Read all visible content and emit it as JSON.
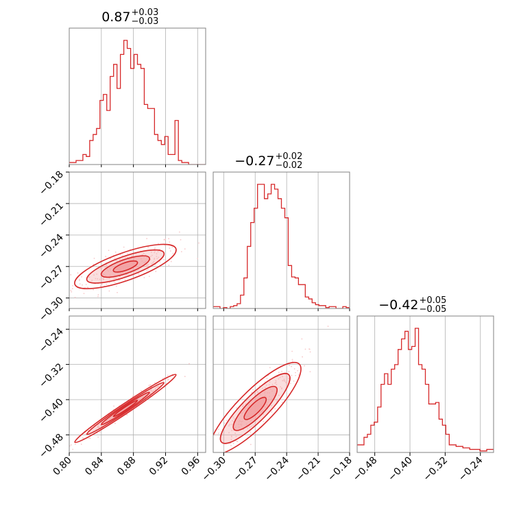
{
  "colors": {
    "series": "#d62728",
    "fill": "#f2a0a1",
    "points": "#f7c9ca",
    "grid": "#b0b0b0"
  },
  "chart_data": {
    "type": "corner",
    "grid": true,
    "parameters": [
      {
        "range": [
          0.8,
          0.97
        ],
        "ticks": [
          "0.80",
          "0.84",
          "0.88",
          "0.92",
          "0.96"
        ],
        "tick_values": [
          0.8,
          0.84,
          0.88,
          0.92,
          0.96
        ],
        "title": "0.87",
        "title_plus": "+0.03",
        "title_minus": "−0.03"
      },
      {
        "range": [
          -0.31,
          -0.18
        ],
        "ticks": [
          "−0.30",
          "−0.27",
          "−0.24",
          "−0.21",
          "−0.18"
        ],
        "tick_values": [
          -0.3,
          -0.27,
          -0.24,
          -0.21,
          -0.18
        ],
        "title": "−0.27",
        "title_plus": "+0.02",
        "title_minus": "−0.02"
      },
      {
        "range": [
          -0.52,
          -0.21
        ],
        "ticks": [
          "−0.48",
          "−0.40",
          "−0.32",
          "−0.24"
        ],
        "tick_values": [
          -0.48,
          -0.4,
          -0.32,
          -0.24
        ],
        "title": "−0.42",
        "title_plus": "+0.05",
        "title_minus": "−0.05"
      }
    ],
    "histograms": [
      [
        1,
        1,
        2,
        2,
        5,
        4,
        12,
        15,
        18,
        32,
        35,
        27,
        44,
        50,
        38,
        55,
        62,
        58,
        48,
        55,
        50,
        48,
        30,
        28,
        28,
        15,
        12,
        10,
        14,
        5,
        5,
        22,
        2,
        1,
        1,
        0,
        0,
        0,
        0,
        0
      ],
      [
        2,
        2,
        0,
        1,
        0,
        2,
        3,
        5,
        14,
        32,
        65,
        90,
        105,
        130,
        130,
        115,
        120,
        130,
        125,
        115,
        105,
        95,
        45,
        33,
        32,
        25,
        25,
        12,
        10,
        6,
        4,
        3,
        3,
        1,
        2,
        2,
        0,
        0,
        2,
        1
      ],
      [
        5,
        5,
        10,
        12,
        18,
        20,
        30,
        45,
        52,
        45,
        55,
        58,
        68,
        75,
        80,
        68,
        70,
        82,
        58,
        55,
        45,
        32,
        32,
        33,
        22,
        18,
        12,
        5,
        5,
        4,
        4,
        3,
        3,
        2,
        2,
        2,
        1,
        1,
        2,
        2
      ]
    ],
    "pairs": [
      {
        "x": 0,
        "y": 1,
        "slope": 0.27,
        "x_mean": 0.87,
        "y_mean": -0.27,
        "x_sd": 0.03,
        "scatter_sd": 0.006
      },
      {
        "x": 0,
        "y": 2,
        "slope": 1.22,
        "x_mean": 0.87,
        "y_mean": -0.42,
        "x_sd": 0.03,
        "scatter_sd": 0.005
      },
      {
        "x": 1,
        "y": 2,
        "slope": 2.4,
        "x_mean": -0.27,
        "y_mean": -0.42,
        "x_sd": 0.02,
        "scatter_sd": 0.018
      }
    ]
  }
}
